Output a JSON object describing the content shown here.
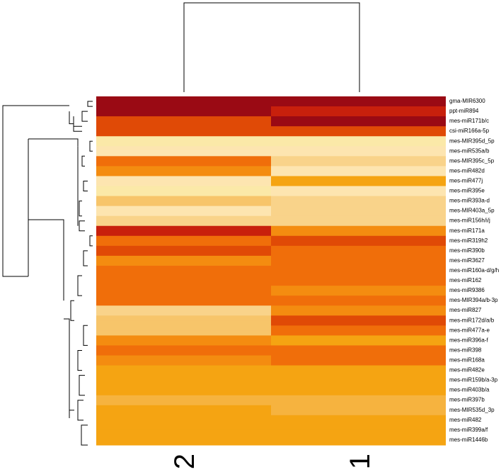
{
  "chart_data": {
    "type": "heatmap",
    "title": "",
    "columns": [
      "I2",
      "I1"
    ],
    "row_labels_all": [
      "gma-MIR6300",
      "",
      "ppt-miR894",
      "",
      "mes-miR171b/c",
      "",
      "csi-miR166a-5p",
      "",
      "mes-MIR395d_5p",
      "",
      "mes-miR535a/b",
      "",
      "mes-MIR395c_5p",
      "",
      "mes-miR482d",
      "",
      "mes-miR477j",
      "",
      "mes-miR395e",
      "",
      "mes-miR393a-d",
      "",
      "mes-MIR403a_5p",
      "",
      "mes-miR156h/i/j",
      "",
      "mes-miR171a",
      "",
      "mes-miR319h2",
      "",
      "mes-miR390b",
      "",
      "mes-miR3627",
      "",
      "mes-miR160a-d/g/h",
      "",
      "mes-miR162",
      "",
      "mes-miR9386",
      "",
      "mes-MIR394a/b-3p",
      "",
      "mes-miR827",
      "",
      "mes-miR172d/a/b",
      "",
      "mes-miR477a-e",
      "",
      "mes-miR396a-f",
      "",
      "mes-miR398",
      "",
      "mes-miR168a",
      "",
      "mes-miR482e",
      "",
      "mes-miR159b/a-3p",
      "",
      "mes-miR403b/a",
      "",
      "mes-miR397b",
      "",
      "mes-MIR535d_3p",
      "",
      "mes-miR482",
      "",
      "mes-miR399a/f",
      "",
      "mes-miR1446b",
      ""
    ],
    "colors": {
      "1": "#fbe9a8",
      "2": "#fde5b0",
      "3": "#f9d38a",
      "4": "#f7c56a",
      "5": "#f6b33f",
      "6": "#f5a412",
      "7": "#f48c10",
      "8": "#f06e0a",
      "9": "#e04a06",
      "10": "#c8200c",
      "11": "#9a0a14"
    },
    "values_I2": [
      11,
      11,
      11,
      11,
      9,
      9,
      9,
      9,
      1,
      1,
      2,
      2,
      8,
      8,
      7,
      7,
      2,
      2,
      1,
      1,
      4,
      4,
      2,
      2,
      3,
      3,
      10,
      10,
      8,
      8,
      9,
      9,
      7,
      7,
      8,
      8,
      8,
      8,
      8,
      8,
      8,
      8,
      3,
      3,
      4,
      4,
      4,
      4,
      7,
      7,
      8,
      8,
      7,
      7,
      6,
      6,
      6,
      6,
      6,
      6,
      5,
      5,
      6,
      6,
      6,
      6,
      6,
      6,
      6,
      6
    ],
    "values_I1": [
      11,
      11,
      10,
      10,
      11,
      11,
      9,
      9,
      1,
      1,
      2,
      2,
      3,
      3,
      2,
      2,
      6,
      6,
      2,
      2,
      3,
      3,
      3,
      3,
      3,
      3,
      7,
      7,
      9,
      9,
      8,
      8,
      8,
      8,
      8,
      8,
      8,
      8,
      7,
      7,
      8,
      8,
      7,
      7,
      9,
      9,
      8,
      8,
      6,
      6,
      8,
      8,
      8,
      8,
      6,
      6,
      6,
      6,
      6,
      6,
      5,
      5,
      5,
      5,
      6,
      6,
      6,
      6,
      6,
      6
    ]
  }
}
